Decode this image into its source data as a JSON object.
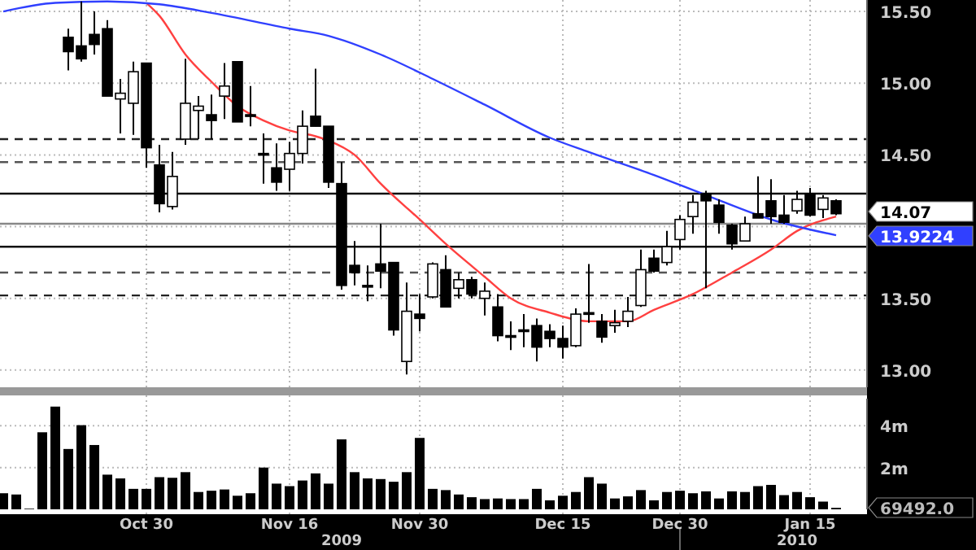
{
  "chart_data": [
    {
      "type": "candlestick",
      "categories": [
        null,
        null,
        null,
        null,
        null,
        null,
        null,
        null,
        null,
        null,
        null,
        null,
        null,
        null,
        null,
        null,
        null,
        null,
        null,
        null,
        null,
        null,
        null,
        null,
        null,
        null,
        null,
        null,
        null,
        null,
        null,
        null,
        null,
        null,
        null,
        null,
        null,
        null,
        null,
        null,
        null,
        null,
        null,
        null,
        null,
        null,
        null,
        null,
        null,
        null,
        null,
        null,
        null,
        null,
        null,
        null,
        null,
        null,
        null,
        null,
        null,
        null,
        null,
        null,
        null
      ],
      "ohlc": [
        null,
        null,
        null,
        null,
        null,
        [
          15.32,
          15.38,
          15.09,
          15.22
        ],
        [
          15.26,
          15.57,
          15.15,
          15.17
        ],
        [
          15.34,
          15.5,
          15.2,
          15.27
        ],
        [
          15.38,
          15.44,
          14.91,
          14.91
        ],
        [
          14.89,
          15.03,
          14.65,
          14.93
        ],
        [
          14.86,
          15.15,
          14.64,
          15.08
        ],
        [
          15.14,
          15.14,
          14.41,
          14.55
        ],
        [
          14.43,
          14.57,
          14.1,
          14.16
        ],
        [
          14.14,
          14.52,
          14.12,
          14.35
        ],
        [
          14.61,
          15.17,
          14.57,
          14.86
        ],
        [
          14.81,
          14.91,
          14.61,
          14.84
        ],
        [
          14.78,
          14.92,
          14.61,
          14.74
        ],
        [
          14.91,
          15.14,
          14.75,
          14.98
        ],
        [
          15.15,
          15.15,
          14.73,
          14.73
        ],
        [
          14.78,
          14.98,
          14.7,
          14.77
        ],
        [
          14.51,
          14.65,
          14.3,
          14.5
        ],
        [
          14.41,
          14.58,
          14.25,
          14.31
        ],
        [
          14.4,
          14.59,
          14.25,
          14.51
        ],
        [
          14.51,
          14.81,
          14.44,
          14.7
        ],
        [
          14.77,
          15.1,
          14.7,
          14.7
        ],
        [
          14.7,
          14.7,
          14.27,
          14.31
        ],
        [
          14.3,
          14.45,
          13.56,
          13.59
        ],
        [
          13.73,
          13.9,
          13.59,
          13.68
        ],
        [
          13.59,
          13.73,
          13.48,
          13.58
        ],
        [
          13.74,
          14.02,
          13.57,
          13.69
        ],
        [
          13.75,
          13.75,
          13.24,
          13.28
        ],
        [
          13.06,
          13.61,
          12.97,
          13.41
        ],
        [
          13.39,
          13.53,
          13.27,
          13.36
        ],
        [
          13.51,
          13.75,
          13.5,
          13.74
        ],
        [
          13.7,
          13.8,
          13.44,
          13.44
        ],
        [
          13.57,
          13.68,
          13.5,
          13.63
        ],
        [
          13.63,
          13.65,
          13.5,
          13.53
        ],
        [
          13.5,
          13.61,
          13.38,
          13.55
        ],
        [
          13.44,
          13.53,
          13.2,
          13.24
        ],
        [
          13.24,
          13.34,
          13.14,
          13.23
        ],
        [
          13.28,
          13.39,
          13.16,
          13.27
        ],
        [
          13.31,
          13.36,
          13.06,
          13.16
        ],
        [
          13.27,
          13.32,
          13.16,
          13.22
        ],
        [
          13.22,
          13.31,
          13.08,
          13.16
        ],
        [
          13.17,
          13.43,
          13.16,
          13.39
        ],
        [
          13.4,
          13.74,
          13.33,
          13.39
        ],
        [
          13.34,
          13.39,
          13.19,
          13.23
        ],
        [
          13.31,
          13.42,
          13.26,
          13.33
        ],
        [
          13.34,
          13.51,
          13.3,
          13.41
        ],
        [
          13.45,
          13.84,
          13.44,
          13.7
        ],
        [
          13.78,
          13.84,
          13.68,
          13.69
        ],
        [
          13.75,
          13.97,
          13.73,
          13.86
        ],
        [
          13.91,
          14.08,
          13.84,
          14.05
        ],
        [
          14.07,
          14.22,
          13.95,
          14.17
        ],
        [
          14.23,
          14.25,
          13.57,
          14.18
        ],
        [
          14.15,
          14.19,
          13.95,
          14.03
        ],
        [
          14.01,
          14.02,
          13.84,
          13.88
        ],
        [
          13.9,
          14.07,
          13.9,
          14.02
        ],
        [
          14.09,
          14.35,
          14.06,
          14.06
        ],
        [
          14.18,
          14.33,
          14.02,
          14.07
        ],
        [
          14.08,
          14.22,
          14.02,
          14.03
        ],
        [
          14.11,
          14.25,
          14.09,
          14.19
        ],
        [
          14.23,
          14.27,
          14.07,
          14.08
        ],
        [
          14.12,
          14.22,
          14.06,
          14.2
        ],
        [
          14.18,
          14.19,
          14.08,
          14.09
        ]
      ],
      "series": [
        {
          "type": "line",
          "color": "#ff4040",
          "values": [
            null,
            null,
            null,
            null,
            null,
            null,
            null,
            null,
            null,
            null,
            null,
            15.56,
            15.47,
            null,
            15.2,
            null,
            15.01,
            null,
            14.84,
            null,
            14.74,
            null,
            14.67,
            null,
            14.63,
            14.6,
            null,
            14.5,
            null,
            14.3,
            null,
            null,
            14.05,
            null,
            13.88,
            null,
            null,
            13.65,
            null,
            13.5,
            null,
            null,
            13.4,
            null,
            null,
            13.34,
            null,
            null,
            13.34,
            null,
            13.42,
            null,
            null,
            13.53,
            null,
            null,
            13.68,
            null,
            null,
            13.84,
            null,
            13.97,
            null,
            null,
            14.07
          ]
        },
        {
          "type": "line",
          "color": "#3040ff",
          "values": [
            15.5,
            null,
            null,
            null,
            15.56,
            null,
            null,
            null,
            15.57,
            null,
            null,
            null,
            15.55,
            null,
            null,
            null,
            15.49,
            null,
            null,
            null,
            null,
            null,
            15.38,
            null,
            null,
            15.33,
            null,
            null,
            null,
            15.2,
            null,
            null,
            null,
            15.03,
            null,
            null,
            null,
            14.85,
            null,
            null,
            null,
            null,
            14.62,
            null,
            null,
            14.52,
            null,
            null,
            null,
            null,
            14.36,
            null,
            null,
            null,
            14.22,
            null,
            null,
            null,
            null,
            14.05,
            null,
            null,
            null,
            null,
            13.94
          ]
        }
      ],
      "ref_lines": [
        {
          "axis": "y",
          "value": 14.61,
          "line_style": "dashed",
          "color": "#222222"
        },
        {
          "axis": "y",
          "value": 14.45,
          "line_style": "dashed",
          "color": "#555555"
        },
        {
          "axis": "y",
          "value": 14.23,
          "line_style": "solid",
          "color": "#111111"
        },
        {
          "axis": "y",
          "value": 14.02,
          "line_style": "solid",
          "color": "#888888"
        },
        {
          "axis": "y",
          "value": 13.86,
          "line_style": "solid",
          "color": "#111111"
        },
        {
          "axis": "y",
          "value": 13.68,
          "line_style": "dashed",
          "color": "#555555"
        },
        {
          "axis": "y",
          "value": 13.52,
          "line_style": "dashed",
          "color": "#222222"
        }
      ],
      "annotations": [
        "14.07",
        "13.9224"
      ],
      "ylim": [
        12.88,
        15.58
      ],
      "yticks": [
        {
          "value": 13,
          "label": "13.00"
        },
        {
          "value": 13.5,
          "label": "13.50"
        },
        {
          "value": 14,
          "label": null
        },
        {
          "value": 14.5,
          "label": "14.50"
        },
        {
          "value": 15,
          "label": "15.00"
        },
        {
          "value": 15.5,
          "label": "15.50"
        }
      ],
      "grid": true,
      "tick_labels": "y"
    },
    {
      "type": "bar",
      "categories": [
        null,
        null,
        null,
        null,
        null,
        null,
        null,
        null,
        null,
        null,
        null,
        "Oct 30",
        null,
        null,
        null,
        null,
        null,
        null,
        null,
        null,
        null,
        null,
        "Nov 16",
        null,
        null,
        null,
        null,
        null,
        null,
        null,
        null,
        null,
        "Nov 30",
        null,
        null,
        null,
        null,
        null,
        null,
        null,
        null,
        null,
        null,
        "Dec 15",
        null,
        null,
        null,
        null,
        null,
        null,
        null,
        null,
        "Dec 30",
        null,
        null,
        null,
        null,
        null,
        null,
        null,
        null,
        null,
        "Jan 15",
        null,
        null
      ],
      "values": [
        0.77,
        0.71,
        0.03,
        3.69,
        4.92,
        2.89,
        4.03,
        3.08,
        1.66,
        1.48,
        0.98,
        0.98,
        1.54,
        1.51,
        1.78,
        0.83,
        0.89,
        0.95,
        0.65,
        0.77,
        2.0,
        1.23,
        1.11,
        1.38,
        1.72,
        1.23,
        3.35,
        1.78,
        1.48,
        1.45,
        1.32,
        1.78,
        3.42,
        0.98,
        0.92,
        0.71,
        0.58,
        0.49,
        0.52,
        0.49,
        0.49,
        0.98,
        0.43,
        0.65,
        0.83,
        1.54,
        1.23,
        0.52,
        0.62,
        0.92,
        0.43,
        0.83,
        0.89,
        0.77,
        0.86,
        0.52,
        0.86,
        0.83,
        1.11,
        1.17,
        0.68,
        0.83,
        0.58,
        0.37,
        0.07
      ],
      "color": "#000000",
      "ylim": [
        0,
        5.3
      ],
      "yticks": [
        {
          "value": 2,
          "label": "2m"
        },
        {
          "value": 4,
          "label": "4m"
        }
      ],
      "grid": true,
      "annotations": [
        "69492.0",
        "2009",
        "2010"
      ]
    }
  ]
}
